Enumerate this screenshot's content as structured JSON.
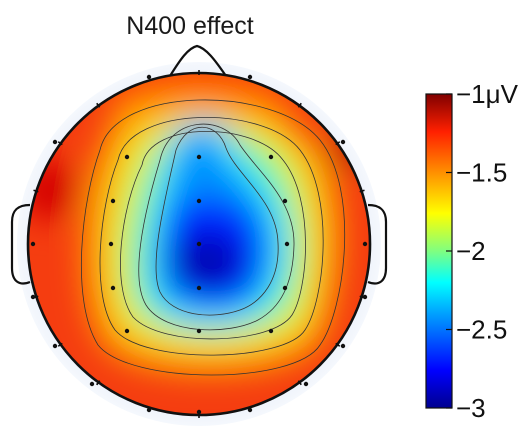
{
  "title": "N400 effect",
  "colorbar": {
    "ticks": [
      {
        "value": -1,
        "label": "−1μV"
      },
      {
        "value": -1.5,
        "label": "−1.5"
      },
      {
        "value": -2,
        "label": "−2"
      },
      {
        "value": -2.5,
        "label": "−2.5"
      },
      {
        "value": -3,
        "label": "−3"
      }
    ],
    "range": [
      -3,
      -1
    ],
    "colormap": [
      "#00008f",
      "#0000ff",
      "#00a0ff",
      "#00ffff",
      "#80ff80",
      "#ffff00",
      "#ff9000",
      "#ff2000",
      "#800000"
    ]
  },
  "colors": {
    "outline": "#111111",
    "head_halo": "#e8eef9",
    "contour": "#333333"
  },
  "electrode_count": 30
}
